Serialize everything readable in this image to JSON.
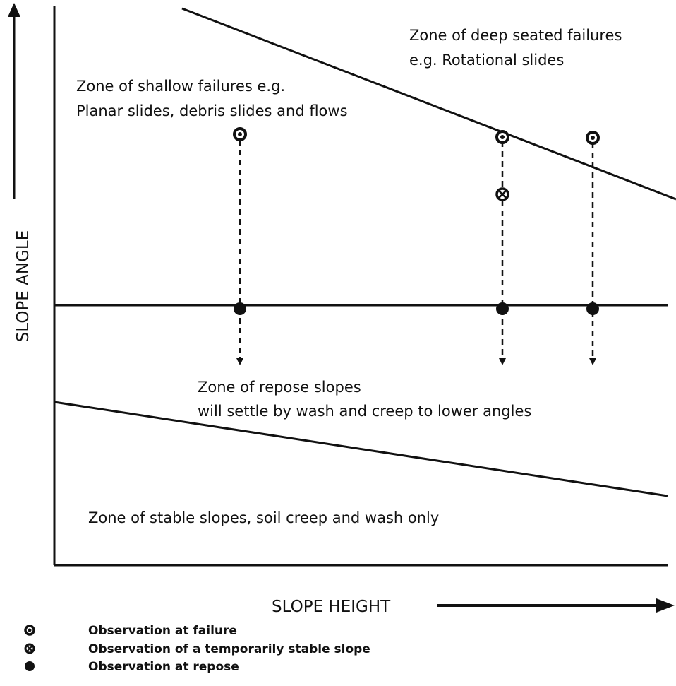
{
  "axes": {
    "y_label": "SLOPE ANGLE",
    "x_label": "SLOPE HEIGHT"
  },
  "zones": [
    {
      "lines": [
        "Zone of deep seated failures",
        "e.g. Rotational slides"
      ]
    },
    {
      "lines": [
        "Zone of shallow failures e.g.",
        "Planar slides, debris slides and flows"
      ]
    },
    {
      "lines": [
        "Zone of repose slopes",
        "will settle by wash and creep to lower angles"
      ]
    },
    {
      "lines": [
        "Zone of stable slopes, soil creep and wash only"
      ]
    }
  ],
  "legend": [
    "Observation at failure",
    "Observation of a temporarily stable slope",
    "Observation at repose"
  ]
}
